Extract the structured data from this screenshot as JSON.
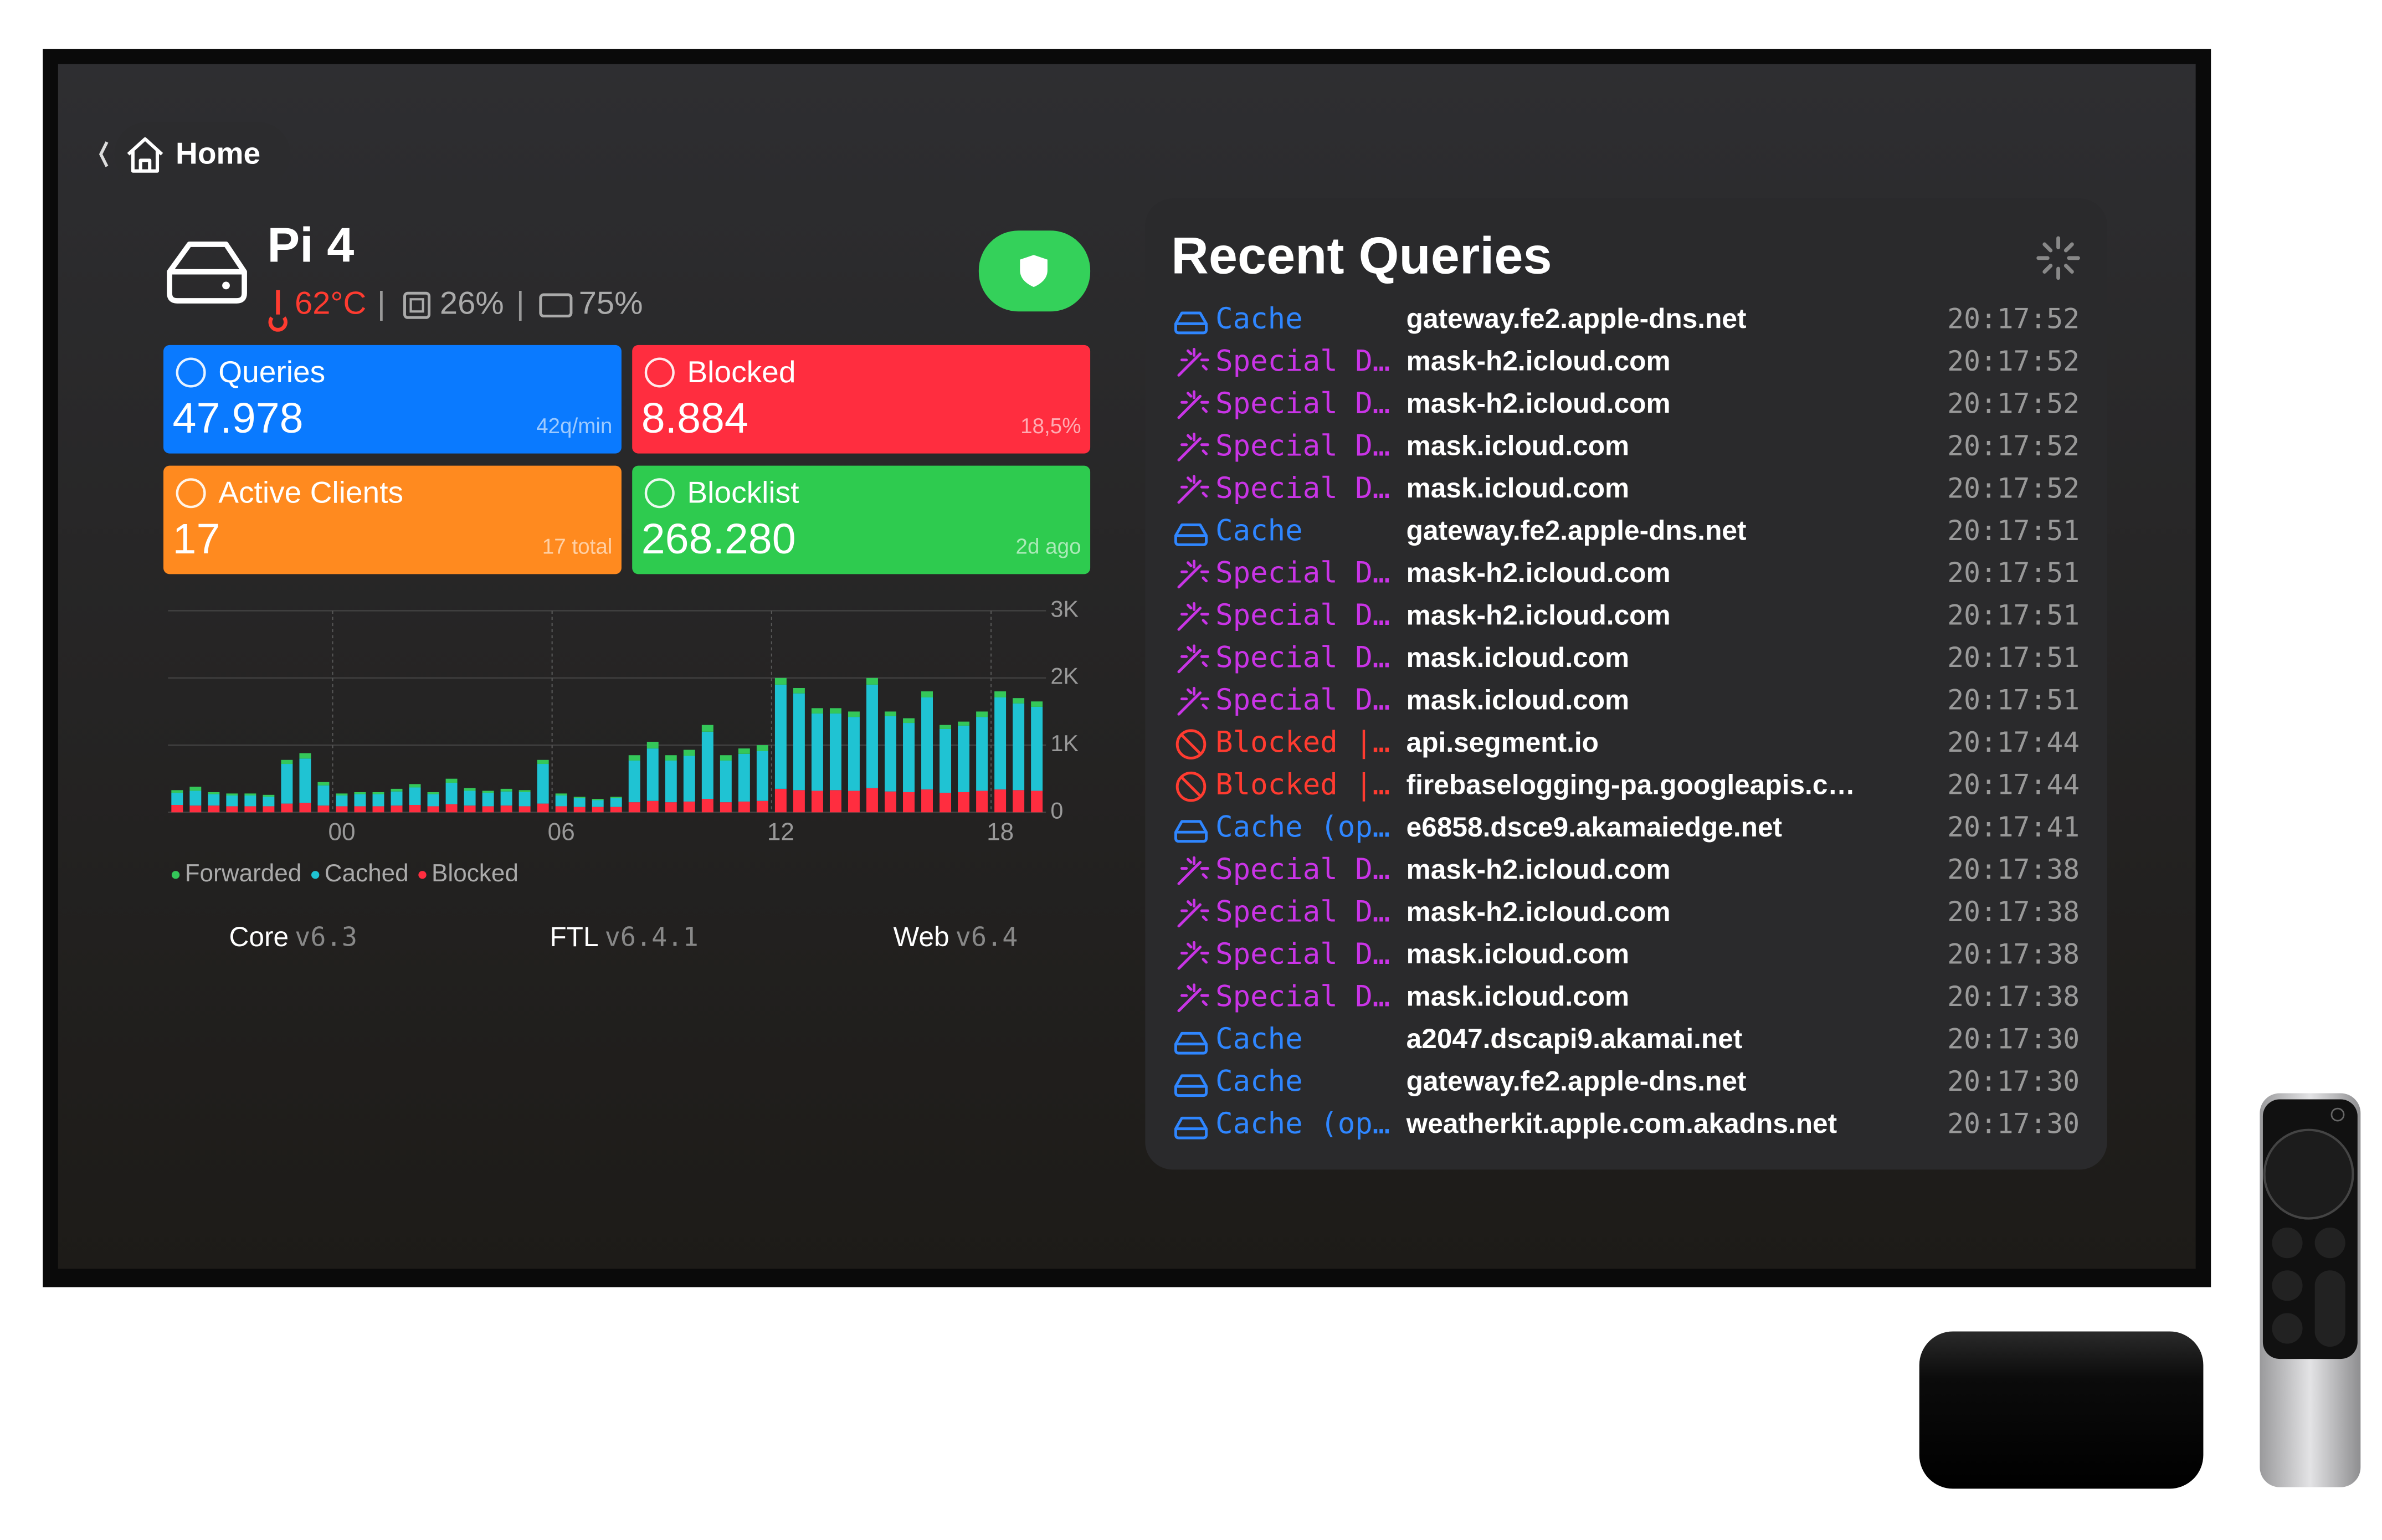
{
  "header": {
    "back": "Home",
    "device": "Pi 4",
    "temperature": "62°C",
    "separator": "|",
    "cpu": "26%",
    "memory": "75%"
  },
  "stats": [
    {
      "title": "Queries",
      "value": "47.978",
      "sub": "42q/min",
      "color": "#0a7aff"
    },
    {
      "title": "Blocked",
      "value": "8.884",
      "sub": "18,5%",
      "color": "#ff2d3f"
    },
    {
      "title": "Active Clients",
      "value": "17",
      "sub": "17 total",
      "color": "#ff8a1f"
    },
    {
      "title": "Blocklist",
      "value": "268.280",
      "sub": "2d ago",
      "color": "#2ecb4f"
    }
  ],
  "chart_data": {
    "type": "bar",
    "stacked": true,
    "grid": true,
    "x": [
      -4.25,
      -3.75,
      -3.25,
      -2.75,
      -2.25,
      -1.75,
      -1.25,
      -0.75,
      -0.25,
      0.25,
      0.75,
      1.25,
      1.75,
      2.25,
      2.75,
      3.25,
      3.75,
      4.25,
      4.75,
      5.25,
      5.75,
      6.25,
      6.75,
      7.25,
      7.75,
      8.25,
      8.75,
      9.25,
      9.75,
      10.25,
      10.75,
      11.25,
      11.75,
      12.25,
      12.75,
      13.25,
      13.75,
      14.25,
      14.75,
      15.25,
      15.75,
      16.25,
      16.75,
      17.25,
      17.75,
      18.25,
      18.75,
      19.25
    ],
    "series": [
      {
        "name": "Forwarded",
        "color": "#34c759",
        "values": [
          40,
          60,
          30,
          30,
          30,
          30,
          60,
          80,
          50,
          30,
          30,
          30,
          40,
          50,
          30,
          60,
          40,
          30,
          40,
          30,
          60,
          30,
          20,
          20,
          20,
          80,
          100,
          80,
          90,
          100,
          80,
          80,
          90,
          100,
          80,
          80,
          80,
          80,
          100,
          70,
          70,
          90,
          60,
          60,
          80,
          90,
          80,
          80
        ]
      },
      {
        "name": "Cached",
        "color": "#1fc3d3",
        "values": [
          180,
          220,
          170,
          160,
          160,
          140,
          590,
          660,
          300,
          160,
          180,
          180,
          210,
          260,
          180,
          320,
          220,
          200,
          210,
          210,
          590,
          160,
          130,
          100,
          130,
          620,
          780,
          620,
          680,
          1000,
          620,
          710,
          740,
          1550,
          1440,
          1150,
          1140,
          1100,
          1540,
          1120,
          1030,
          1370,
          950,
          990,
          1100,
          1370,
          1290,
          1250
        ]
      },
      {
        "name": "Blocked",
        "color": "#ff2d3f",
        "values": [
          110,
          100,
          100,
          90,
          90,
          90,
          130,
          140,
          100,
          90,
          90,
          90,
          100,
          110,
          90,
          120,
          100,
          90,
          100,
          90,
          130,
          90,
          80,
          80,
          80,
          150,
          170,
          150,
          160,
          200,
          150,
          160,
          170,
          350,
          330,
          320,
          330,
          320,
          360,
          310,
          300,
          340,
          290,
          300,
          320,
          340,
          330,
          320
        ]
      }
    ],
    "xlim": [
      -4.5,
      19.5
    ],
    "ylim": [
      0,
      3000
    ],
    "xticks": [
      {
        "value": 0,
        "label": "00"
      },
      {
        "value": 6,
        "label": "06"
      },
      12,
      18
    ],
    "yticks": [
      0,
      {
        "value": 1000,
        "label": "1K"
      },
      {
        "value": 2000,
        "label": "2K"
      },
      {
        "value": 3000,
        "label": "3K"
      }
    ]
  },
  "versions": [
    {
      "name": "Core",
      "version": "v6.3"
    },
    {
      "name": "FTL",
      "version": "v6.4.1"
    },
    {
      "name": "Web",
      "version": "v6.4"
    }
  ],
  "queries": {
    "title": "Recent Queries",
    "rows": [
      {
        "status": "Cache",
        "icon": "cache",
        "color": "#2f86ff",
        "domain": "gateway.fe2.apple-dns.net",
        "time": "20:17:52"
      },
      {
        "status": "Special D…",
        "icon": "special",
        "color": "#c934e6",
        "domain": "mask-h2.icloud.com",
        "time": "20:17:52"
      },
      {
        "status": "Special D…",
        "icon": "special",
        "color": "#c934e6",
        "domain": "mask-h2.icloud.com",
        "time": "20:17:52"
      },
      {
        "status": "Special D…",
        "icon": "special",
        "color": "#c934e6",
        "domain": "mask.icloud.com",
        "time": "20:17:52"
      },
      {
        "status": "Special D…",
        "icon": "special",
        "color": "#c934e6",
        "domain": "mask.icloud.com",
        "time": "20:17:52"
      },
      {
        "status": "Cache",
        "icon": "cache",
        "color": "#2f86ff",
        "domain": "gateway.fe2.apple-dns.net",
        "time": "20:17:51"
      },
      {
        "status": "Special D…",
        "icon": "special",
        "color": "#c934e6",
        "domain": "mask-h2.icloud.com",
        "time": "20:17:51"
      },
      {
        "status": "Special D…",
        "icon": "special",
        "color": "#c934e6",
        "domain": "mask-h2.icloud.com",
        "time": "20:17:51"
      },
      {
        "status": "Special D…",
        "icon": "special",
        "color": "#c934e6",
        "domain": "mask.icloud.com",
        "time": "20:17:51"
      },
      {
        "status": "Special D…",
        "icon": "special",
        "color": "#c934e6",
        "domain": "mask.icloud.com",
        "time": "20:17:51"
      },
      {
        "status": "Blocked |…",
        "icon": "blocked",
        "color": "#ff3b30",
        "domain": "api.segment.io",
        "time": "20:17:44"
      },
      {
        "status": "Blocked |…",
        "icon": "blocked",
        "color": "#ff3b30",
        "domain": "firebaselogging-pa.googleapis.c…",
        "time": "20:17:44"
      },
      {
        "status": "Cache (op…",
        "icon": "cache",
        "color": "#2f86ff",
        "domain": "e6858.dsce9.akamaiedge.net",
        "time": "20:17:41"
      },
      {
        "status": "Special D…",
        "icon": "special",
        "color": "#c934e6",
        "domain": "mask-h2.icloud.com",
        "time": "20:17:38"
      },
      {
        "status": "Special D…",
        "icon": "special",
        "color": "#c934e6",
        "domain": "mask-h2.icloud.com",
        "time": "20:17:38"
      },
      {
        "status": "Special D…",
        "icon": "special",
        "color": "#c934e6",
        "domain": "mask.icloud.com",
        "time": "20:17:38"
      },
      {
        "status": "Special D…",
        "icon": "special",
        "color": "#c934e6",
        "domain": "mask.icloud.com",
        "time": "20:17:38"
      },
      {
        "status": "Cache",
        "icon": "cache",
        "color": "#2f86ff",
        "domain": "a2047.dscapi9.akamai.net",
        "time": "20:17:30"
      },
      {
        "status": "Cache",
        "icon": "cache",
        "color": "#2f86ff",
        "domain": "gateway.fe2.apple-dns.net",
        "time": "20:17:30"
      },
      {
        "status": "Cache (op…",
        "icon": "cache",
        "color": "#2f86ff",
        "domain": "weatherkit.apple.com.akadns.net",
        "time": "20:17:30"
      }
    ]
  }
}
